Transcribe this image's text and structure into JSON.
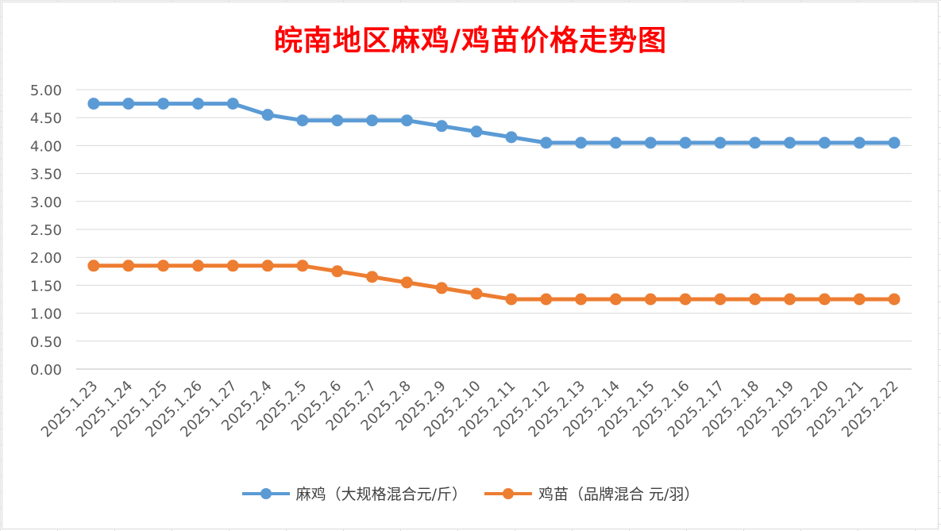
{
  "chart_data": {
    "type": "line",
    "title": "皖南地区麻鸡/鸡苗价格走势图",
    "xlabel": "",
    "ylabel": "",
    "ylim": [
      0,
      5
    ],
    "y_ticks": [
      "0.00",
      "0.50",
      "1.00",
      "1.50",
      "2.00",
      "2.50",
      "3.00",
      "3.50",
      "4.00",
      "4.50",
      "5.00"
    ],
    "grid": true,
    "legend_position": "bottom",
    "categories": [
      "2025.1.23",
      "2025.1.24",
      "2025.1.25",
      "2025.1.26",
      "2025.1.27",
      "2025.2.4",
      "2025.2.5",
      "2025.2.6",
      "2025.2.7",
      "2025.2.8",
      "2025.2.9",
      "2025.2.10",
      "2025.2.11",
      "2025.2.12",
      "2025.2.13",
      "2025.2.14",
      "2025.2.15",
      "2025.2.16",
      "2025.2.17",
      "2025.2.18",
      "2025.2.19",
      "2025.2.20",
      "2025.2.21",
      "2025.2.22"
    ],
    "series": [
      {
        "name": "麻鸡（大规格混合元/斤）",
        "color": "#5b9bd5",
        "values": [
          4.75,
          4.75,
          4.75,
          4.75,
          4.75,
          4.55,
          4.45,
          4.45,
          4.45,
          4.45,
          4.35,
          4.25,
          4.15,
          4.05,
          4.05,
          4.05,
          4.05,
          4.05,
          4.05,
          4.05,
          4.05,
          4.05,
          4.05,
          4.05
        ]
      },
      {
        "name": "鸡苗（品牌混合 元/羽）",
        "color": "#ed7d31",
        "values": [
          1.85,
          1.85,
          1.85,
          1.85,
          1.85,
          1.85,
          1.85,
          1.75,
          1.65,
          1.55,
          1.45,
          1.35,
          1.25,
          1.25,
          1.25,
          1.25,
          1.25,
          1.25,
          1.25,
          1.25,
          1.25,
          1.25,
          1.25,
          1.25
        ]
      }
    ]
  }
}
